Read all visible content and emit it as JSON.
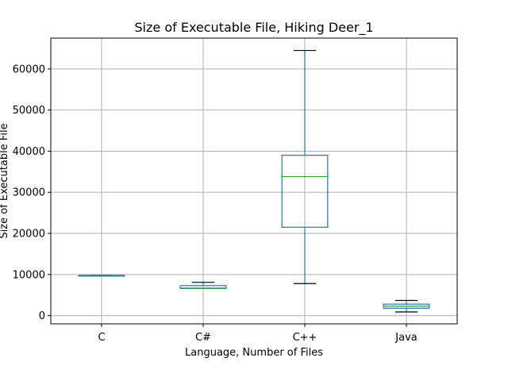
{
  "chart_data": {
    "type": "box",
    "title": "Size of Executable File, Hiking Deer_1",
    "xlabel": "Language, Number of Files",
    "ylabel": "Size of Executable File",
    "ylim": [
      -2000,
      67500
    ],
    "yticks": [
      0,
      10000,
      20000,
      30000,
      40000,
      50000,
      60000
    ],
    "grid": true,
    "categories": [
      "C",
      "C#",
      "C++",
      "Java"
    ],
    "boxes": [
      {
        "category": "C",
        "whisker_low": 9700,
        "q1": 9700,
        "median": 9750,
        "q3": 9800,
        "whisker_high": 9800
      },
      {
        "category": "C#",
        "whisker_low": 6600,
        "q1": 6600,
        "median": 6700,
        "q3": 7300,
        "whisker_high": 8100
      },
      {
        "category": "C++",
        "whisker_low": 7800,
        "q1": 21500,
        "median": 33800,
        "q3": 39000,
        "whisker_high": 64500
      },
      {
        "category": "Java",
        "whisker_low": 900,
        "q1": 1800,
        "median": 2300,
        "q3": 2800,
        "whisker_high": 3700
      }
    ],
    "colors": {
      "box": "#1f77b4",
      "median": "#2ca02c",
      "whisker_cap": "#000000",
      "grid": "#b0b0b0"
    }
  }
}
